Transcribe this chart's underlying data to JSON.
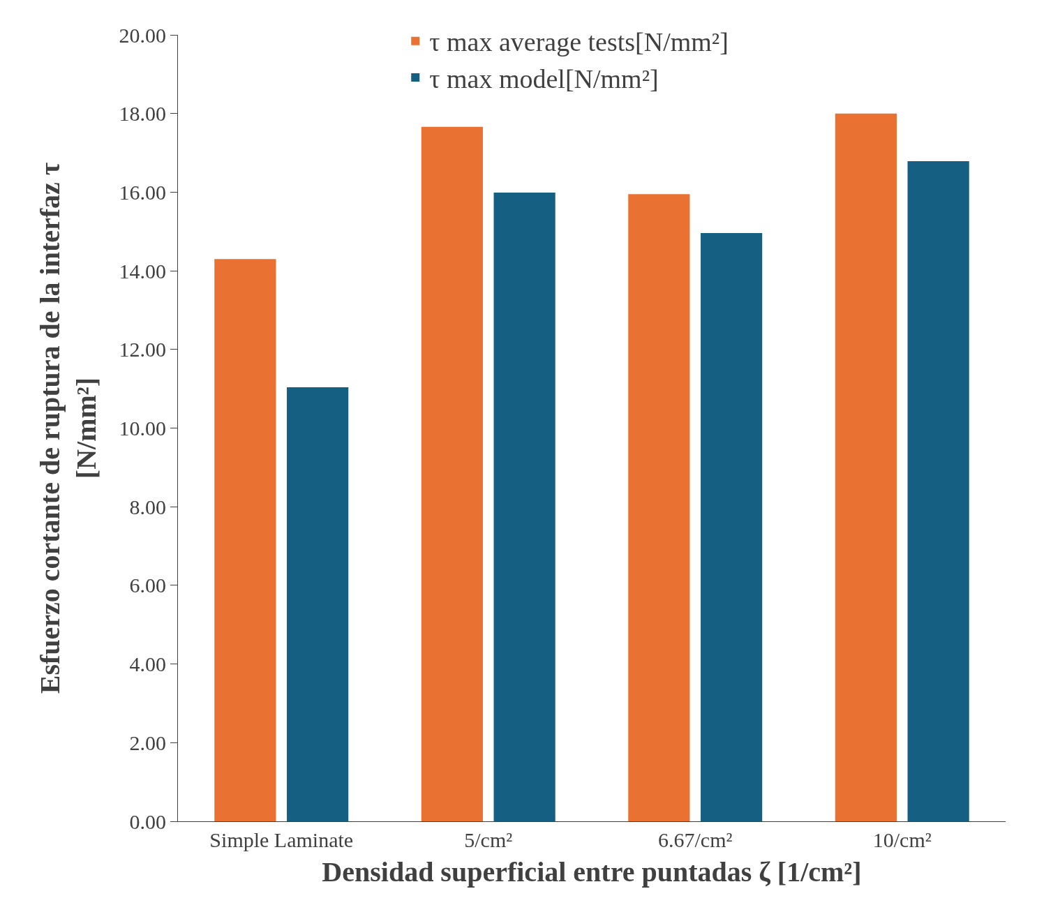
{
  "chart_data": {
    "type": "bar",
    "xlabel": "Densidad superficial entre puntadas ζ [1/cm²]",
    "ylabel": "Esfuerzo cortante de ruptura de la interfaz τ\n[N/mm²]",
    "categories": [
      "Simple Laminate",
      "5/cm²",
      "6.67/cm²",
      "10/cm²"
    ],
    "series": [
      {
        "name": "τ max average tests[N/mm²]",
        "color": "#e97132",
        "values": [
          14.3,
          17.66,
          15.95,
          18.0
        ]
      },
      {
        "name": "τ max model[N/mm²]",
        "color": "#156082",
        "values": [
          11.04,
          15.99,
          14.96,
          16.79
        ]
      }
    ],
    "ylim": [
      0,
      20
    ],
    "yticks": [
      {
        "value": 0,
        "label": "0.00"
      },
      {
        "value": 2,
        "label": "2.00"
      },
      {
        "value": 4,
        "label": "4.00"
      },
      {
        "value": 6,
        "label": "6.00"
      },
      {
        "value": 8,
        "label": "8.00"
      },
      {
        "value": 10,
        "label": "10.00"
      },
      {
        "value": 12,
        "label": "12.00"
      },
      {
        "value": 14,
        "label": "14.00"
      },
      {
        "value": 16,
        "label": "16.00"
      },
      {
        "value": 18,
        "label": "18.00"
      },
      {
        "value": 20,
        "label": "20.00"
      }
    ],
    "legend": "top"
  }
}
